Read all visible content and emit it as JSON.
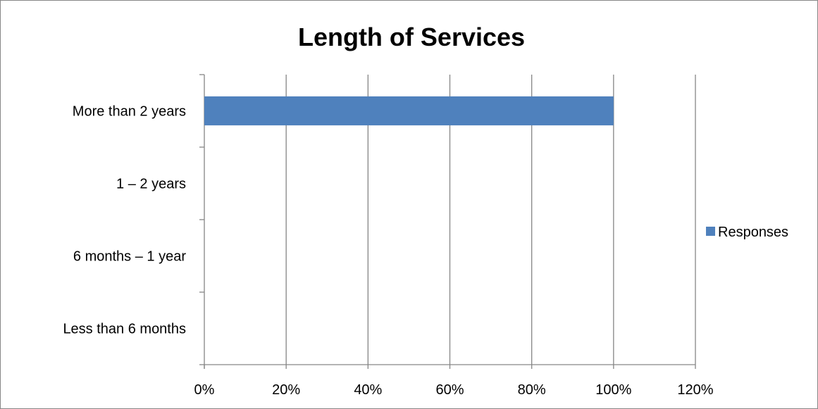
{
  "chart_data": {
    "type": "bar",
    "orientation": "horizontal",
    "title": "Length of Services",
    "xlabel": "",
    "ylabel": "",
    "categories": [
      "More than 2 years",
      "1 – 2 years",
      "6 months – 1 year",
      "Less than 6 months"
    ],
    "series": [
      {
        "name": "Responses",
        "values": [
          100,
          0,
          0,
          0
        ],
        "color": "#4F81BD"
      }
    ],
    "xlim": [
      0,
      120
    ],
    "xticks": [
      0,
      20,
      40,
      60,
      80,
      100,
      120
    ],
    "xtick_labels": [
      "0%",
      "20%",
      "40%",
      "60%",
      "80%",
      "100%",
      "120%"
    ],
    "grid": "vertical",
    "legend_position": "right"
  }
}
